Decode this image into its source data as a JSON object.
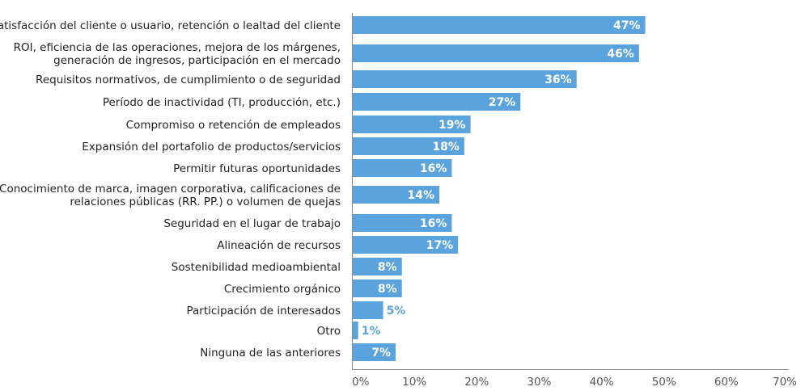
{
  "chart_data": {
    "type": "bar",
    "orientation": "horizontal",
    "categories": [
      [
        "Satisfacción del cliente o usuario, retención o lealtad del cliente"
      ],
      [
        "ROI, eficiencia de las operaciones, mejora de los márgenes,",
        "generación de ingresos, participación en el mercado"
      ],
      [
        "Requisitos normativos, de cumplimiento o de seguridad"
      ],
      [
        "Período de inactividad (TI, producción, etc.)"
      ],
      [
        "Compromiso o retención de empleados"
      ],
      [
        "Expansión del portafolio de productos/servicios"
      ],
      [
        "Permitir futuras oportunidades"
      ],
      [
        "Conocimiento de marca, imagen corporativa, calificaciones de",
        "relaciones públicas (RR. PP.) o volumen de quejas"
      ],
      [
        "Seguridad en el lugar de trabajo"
      ],
      [
        "Alineación de recursos"
      ],
      [
        "Sostenibilidad medioambiental"
      ],
      [
        "Crecimiento orgánico"
      ],
      [
        "Participación de interesados"
      ],
      [
        "Otro"
      ],
      [
        "Ninguna de las anteriores"
      ]
    ],
    "values": [
      47,
      46,
      36,
      27,
      19,
      18,
      16,
      14,
      16,
      17,
      8,
      8,
      5,
      1,
      7
    ],
    "value_labels": [
      "47%",
      "46%",
      "36%",
      "27%",
      "19%",
      "18%",
      "16%",
      "14%",
      "16%",
      "17%",
      "8%",
      "8%",
      "5%",
      "1%",
      "7%"
    ],
    "xlim": [
      0,
      70
    ],
    "x_ticks": [
      0,
      10,
      20,
      30,
      40,
      50,
      60,
      70
    ],
    "x_tick_labels": [
      "0%",
      "10%",
      "20%",
      "30%",
      "40%",
      "50%",
      "60%",
      "70%"
    ],
    "grid": false,
    "legend": "none",
    "title": "",
    "xlabel": "",
    "ylabel": ""
  },
  "colors": {
    "bar": "#5ba3dc",
    "value_label_inside": "#ffffff",
    "value_label_outside": "#5ba3dc",
    "axis": "#888888",
    "text": "#222222"
  }
}
